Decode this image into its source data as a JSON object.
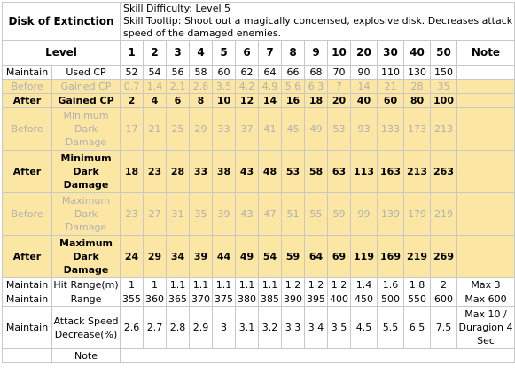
{
  "skill": {
    "name": "Disk of Extinction",
    "difficulty": "Skill Difficulty: Level 5",
    "tooltip": "Skill Tooltip: Shoot out a magically condensed, explosive disk. Decreases attack speed of the damaged enemies."
  },
  "header": {
    "level_label": "Level",
    "levels": [
      "1",
      "2",
      "3",
      "4",
      "5",
      "6",
      "7",
      "8",
      "9",
      "10",
      "20",
      "30",
      "40",
      "50"
    ],
    "note_label": "Note"
  },
  "rows": [
    {
      "tag": "Maintain",
      "label": "Used CP",
      "values": [
        "52",
        "54",
        "56",
        "58",
        "60",
        "62",
        "64",
        "66",
        "68",
        "70",
        "90",
        "110",
        "130",
        "150"
      ],
      "note": ""
    },
    {
      "tag": "Before",
      "label": "Gained CP",
      "values": [
        "0.7",
        "1.4",
        "2.1",
        "2.8",
        "3.5",
        "4.2",
        "4.9",
        "5.6",
        "6.3",
        "7",
        "14",
        "21",
        "28",
        "35"
      ],
      "note": ""
    },
    {
      "tag": "After",
      "label": "Gained CP",
      "values": [
        "2",
        "4",
        "6",
        "8",
        "10",
        "12",
        "14",
        "16",
        "18",
        "20",
        "40",
        "60",
        "80",
        "100"
      ],
      "note": ""
    },
    {
      "tag": "Before",
      "label": "Minimum Dark Damage",
      "values": [
        "17",
        "21",
        "25",
        "29",
        "33",
        "37",
        "41",
        "45",
        "49",
        "53",
        "93",
        "133",
        "173",
        "213"
      ],
      "note": ""
    },
    {
      "tag": "After",
      "label": "Minimum Dark Damage",
      "values": [
        "18",
        "23",
        "28",
        "33",
        "38",
        "43",
        "48",
        "53",
        "58",
        "63",
        "113",
        "163",
        "213",
        "263"
      ],
      "note": ""
    },
    {
      "tag": "Before",
      "label": "Maximum Dark Damage",
      "values": [
        "23",
        "27",
        "31",
        "35",
        "39",
        "43",
        "47",
        "51",
        "55",
        "59",
        "99",
        "139",
        "179",
        "219"
      ],
      "note": ""
    },
    {
      "tag": "After",
      "label": "Maximum Dark Damage",
      "values": [
        "24",
        "29",
        "34",
        "39",
        "44",
        "49",
        "54",
        "59",
        "64",
        "69",
        "119",
        "169",
        "219",
        "269"
      ],
      "note": ""
    },
    {
      "tag": "Maintain",
      "label": "Hit Range(m)",
      "values": [
        "1",
        "1",
        "1.1",
        "1.1",
        "1.1",
        "1.1",
        "1.1",
        "1.2",
        "1.2",
        "1.2",
        "1.4",
        "1.6",
        "1.8",
        "2"
      ],
      "note": "Max 3"
    },
    {
      "tag": "Maintain",
      "label": "Range",
      "values": [
        "355",
        "360",
        "365",
        "370",
        "375",
        "380",
        "385",
        "390",
        "395",
        "400",
        "450",
        "500",
        "550",
        "600"
      ],
      "note": "Max 600"
    },
    {
      "tag": "Maintain",
      "label": "Attack Speed Decrease(%)",
      "values": [
        "2.6",
        "2.7",
        "2.8",
        "2.9",
        "3",
        "3.1",
        "3.2",
        "3.3",
        "3.4",
        "3.5",
        "4.5",
        "5.5",
        "6.5",
        "7.5"
      ],
      "note": "Max 10 / Duragion 4 Sec"
    },
    {
      "tag": "",
      "label": "Note",
      "values": [
        "",
        "",
        "",
        "",
        "",
        "",
        "",
        "",
        "",
        "",
        "",
        "",
        "",
        ""
      ],
      "note": ""
    }
  ]
}
